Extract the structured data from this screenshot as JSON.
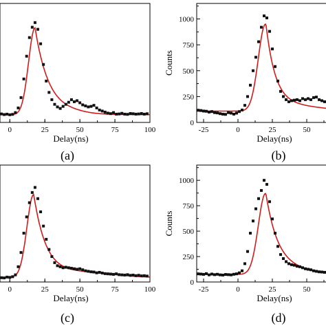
{
  "chart_data": [
    {
      "type": "scatter",
      "panel": "(a)",
      "xlabel": "Delay(ns)",
      "ylabel": "",
      "xlim": [
        -7,
        100
      ],
      "ylim": [
        0,
        1150
      ],
      "xticks": [
        0,
        25,
        50,
        75,
        100
      ],
      "yticks": [],
      "peak_x": 18,
      "peak_y": 915,
      "sigma_rise": 4.6,
      "tau_decay": 10,
      "baseline": 75,
      "tail_level": 85,
      "tail_x0": 45,
      "tail_width": 10,
      "x": [
        -6,
        -4,
        -2,
        0,
        2,
        4,
        6,
        8,
        10,
        12,
        14,
        16,
        18,
        20,
        22,
        24,
        26,
        28,
        30,
        32,
        34,
        36,
        38,
        40,
        42,
        44,
        46,
        48,
        50,
        52,
        54,
        56,
        58,
        60,
        62,
        64,
        66,
        68,
        70,
        72,
        74,
        76,
        78,
        80,
        82,
        84,
        86,
        88,
        90,
        92,
        94,
        96,
        98
      ],
      "values": [
        82,
        76,
        80,
        74,
        78,
        95,
        140,
        240,
        420,
        640,
        820,
        920,
        965,
        900,
        760,
        560,
        400,
        290,
        220,
        175,
        150,
        135,
        155,
        175,
        195,
        220,
        200,
        210,
        190,
        170,
        160,
        150,
        155,
        165,
        140,
        120,
        110,
        100,
        90,
        85,
        95,
        80,
        82,
        88,
        80,
        78,
        86,
        84,
        80,
        82,
        86,
        80,
        84
      ]
    },
    {
      "type": "scatter",
      "panel": "(b)",
      "xlabel": "Delay(ns)",
      "ylabel": "Counts",
      "xlim": [
        -30,
        65
      ],
      "ylim": [
        0,
        1150
      ],
      "xticks": [
        -25,
        0,
        25,
        50
      ],
      "yticks": [
        0,
        250,
        500,
        750,
        1000
      ],
      "peak_x": 20,
      "peak_y": 950,
      "sigma_rise": 5.2,
      "tau_decay": 7,
      "baseline": 110,
      "tail_level": 160,
      "tail_x0": 36,
      "tail_width": 24,
      "x": [
        -29,
        -27,
        -25,
        -23,
        -21,
        -19,
        -17,
        -15,
        -13,
        -11,
        -9,
        -7,
        -5,
        -3,
        -1,
        1,
        3,
        5,
        7,
        9,
        11,
        13,
        15,
        17,
        19,
        21,
        23,
        25,
        27,
        29,
        31,
        33,
        35,
        37,
        39,
        41,
        43,
        45,
        47,
        49,
        51,
        53,
        55,
        57,
        59,
        61,
        63
      ],
      "values": [
        118,
        115,
        110,
        108,
        100,
        105,
        95,
        92,
        85,
        80,
        78,
        95,
        90,
        80,
        90,
        105,
        120,
        165,
        250,
        360,
        500,
        630,
        780,
        920,
        1030,
        1010,
        880,
        710,
        540,
        400,
        300,
        250,
        220,
        200,
        210,
        215,
        220,
        210,
        230,
        220,
        230,
        220,
        240,
        245,
        220,
        210,
        200
      ]
    },
    {
      "type": "scatter",
      "panel": "(c)",
      "xlabel": "Delay(ns)",
      "ylabel": "",
      "xlim": [
        -7,
        100
      ],
      "ylim": [
        0,
        1150
      ],
      "xticks": [
        0,
        25,
        50,
        75,
        100
      ],
      "yticks": [],
      "peak_x": 17,
      "peak_y": 860,
      "sigma_rise": 4.8,
      "tau_decay": 9,
      "baseline": 45,
      "tail_level": 90,
      "tail_x0": 55,
      "tail_width": 20,
      "x": [
        -6,
        -4,
        -2,
        0,
        2,
        4,
        6,
        8,
        10,
        12,
        14,
        16,
        18,
        20,
        22,
        24,
        26,
        28,
        30,
        32,
        34,
        36,
        38,
        40,
        42,
        44,
        46,
        48,
        50,
        52,
        54,
        56,
        58,
        60,
        62,
        64,
        66,
        68,
        70,
        72,
        74,
        76,
        78,
        80,
        82,
        84,
        86,
        88,
        90,
        92,
        94,
        96,
        98
      ],
      "values": [
        42,
        40,
        48,
        45,
        52,
        70,
        150,
        290,
        480,
        640,
        780,
        880,
        930,
        820,
        690,
        550,
        420,
        320,
        250,
        190,
        160,
        150,
        140,
        145,
        140,
        135,
        130,
        125,
        130,
        120,
        110,
        105,
        100,
        98,
        90,
        95,
        88,
        82,
        80,
        78,
        75,
        80,
        72,
        70,
        68,
        72,
        65,
        68,
        62,
        66,
        60,
        62,
        58
      ]
    },
    {
      "type": "scatter",
      "panel": "(d)",
      "xlabel": "Delay(ns)",
      "ylabel": "Counts",
      "xlim": [
        -30,
        65
      ],
      "ylim": [
        0,
        1150
      ],
      "xticks": [
        -25,
        0,
        25,
        50
      ],
      "yticks": [
        0,
        250,
        500,
        750,
        1000
      ],
      "peak_x": 20,
      "peak_y": 870,
      "sigma_rise": 5.2,
      "tau_decay": 9,
      "baseline": 75,
      "tail_level": 110,
      "tail_x0": 35,
      "tail_width": 20,
      "x": [
        -29,
        -27,
        -25,
        -23,
        -21,
        -19,
        -17,
        -15,
        -13,
        -11,
        -9,
        -7,
        -5,
        -3,
        -1,
        1,
        3,
        5,
        7,
        9,
        11,
        13,
        15,
        17,
        19,
        21,
        23,
        25,
        27,
        29,
        31,
        33,
        35,
        37,
        39,
        41,
        43,
        45,
        47,
        49,
        51,
        53,
        55,
        57,
        59,
        61,
        63
      ],
      "values": [
        80,
        78,
        75,
        82,
        70,
        78,
        72,
        76,
        70,
        68,
        74,
        72,
        70,
        76,
        80,
        90,
        110,
        180,
        300,
        480,
        600,
        720,
        820,
        900,
        1000,
        960,
        790,
        620,
        480,
        350,
        270,
        230,
        200,
        180,
        170,
        165,
        155,
        150,
        140,
        130,
        125,
        120,
        110,
        105,
        100,
        98,
        95
      ]
    }
  ]
}
